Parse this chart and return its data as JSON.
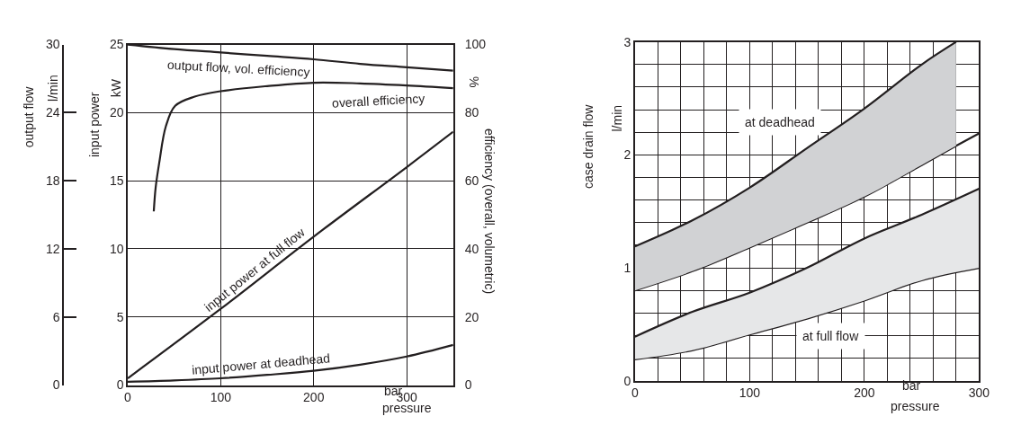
{
  "chart_data": [
    {
      "type": "line",
      "xlabel": "pressure",
      "ylabel": "input power",
      "y2label": "efficiency (overall, volumetric)",
      "y3label": "output flow",
      "annotations": [
        "l/min",
        "kW",
        "%",
        "bar"
      ],
      "series": [
        {
          "name": "output flow, vol. efficiency",
          "color": "#231f20",
          "axis": "y3",
          "x": [
            0,
            50,
            100,
            150,
            200,
            250,
            300,
            350
          ],
          "values": [
            30.0,
            29.6,
            29.3,
            29.0,
            28.7,
            28.3,
            28.0,
            27.7
          ]
        },
        {
          "name": "overall efficiency",
          "color": "#231f20",
          "axis": "y2",
          "x": [
            28,
            30,
            34,
            41,
            51,
            72,
            100,
            150,
            200,
            250,
            300,
            350
          ],
          "values": [
            51,
            58,
            65.5,
            76,
            82,
            84.7,
            86.3,
            87.8,
            88.8,
            88.6,
            88.0,
            87.2
          ]
        },
        {
          "name": "input power at full flow",
          "color": "#231f20",
          "x": [
            0,
            100,
            200,
            300,
            350
          ],
          "values": [
            0.5,
            5.6,
            10.9,
            16.0,
            18.6
          ]
        },
        {
          "name": "input power at deadhead",
          "color": "#231f20",
          "x": [
            0,
            50,
            100,
            150,
            200,
            250,
            300,
            350
          ],
          "values": [
            0.25,
            0.35,
            0.5,
            0.75,
            1.05,
            1.5,
            2.1,
            2.95
          ]
        }
      ],
      "xlim": [
        0,
        350
      ],
      "xticks": [
        0,
        100,
        200,
        300
      ],
      "ylim": [
        0,
        25
      ],
      "yticks": [
        0,
        5,
        10,
        15,
        20,
        25
      ],
      "y2lim": [
        0,
        100
      ],
      "y2ticks": [
        0,
        20,
        40,
        60,
        80,
        100
      ],
      "y3lim": [
        0,
        30
      ],
      "y3ticks": [
        0,
        6,
        12,
        18,
        24,
        30
      ],
      "grid": true,
      "legend": false
    },
    {
      "type": "area",
      "xlabel": "pressure",
      "ylabel": "case drain flow",
      "annotations": [
        "l/min",
        "bar"
      ],
      "series": [
        {
          "type": "line",
          "color": "#231f20",
          "x": [
            0,
            50,
            100,
            150,
            200,
            250,
            280,
            300
          ],
          "values": [
            0.8,
            0.97,
            1.18,
            1.4,
            1.63,
            1.91,
            2.08,
            2.19
          ]
        },
        {
          "name": "at deadhead",
          "color": "#d1d2d4",
          "x": [
            0,
            50,
            100,
            150,
            200,
            250,
            280
          ],
          "values": [
            1.19,
            1.42,
            1.71,
            2.06,
            2.41,
            2.8,
            3.0
          ]
        },
        {
          "type": "line",
          "color": "#231f20",
          "x": [
            0,
            50,
            100,
            150,
            200,
            250,
            300
          ],
          "values": [
            0.19,
            0.27,
            0.41,
            0.55,
            0.71,
            0.89,
            1.0
          ]
        },
        {
          "name": "at full flow",
          "color": "#e6e7e8",
          "x": [
            0,
            50,
            100,
            150,
            200,
            250,
            300
          ],
          "values": [
            0.39,
            0.61,
            0.78,
            1.0,
            1.26,
            1.47,
            1.7
          ]
        }
      ],
      "xlim": [
        0,
        300
      ],
      "xticks": [
        0,
        {
          "value": 20,
          "label": null
        },
        {
          "value": 40,
          "label": null
        },
        {
          "value": 60,
          "label": null
        },
        {
          "value": 80,
          "label": null
        },
        100,
        {
          "value": 120,
          "label": null
        },
        {
          "value": 140,
          "label": null
        },
        {
          "value": 160,
          "label": null
        },
        {
          "value": 180,
          "label": null
        },
        200,
        {
          "value": 220,
          "label": null
        },
        {
          "value": 240,
          "label": null
        },
        {
          "value": 260,
          "label": null
        },
        {
          "value": 280,
          "label": null
        },
        300
      ],
      "ylim": [
        0,
        3
      ],
      "yticks": [
        0,
        {
          "value": 0.2,
          "label": null
        },
        {
          "value": 0.4,
          "label": null
        },
        {
          "value": 0.6,
          "label": null
        },
        {
          "value": 0.8,
          "label": null
        },
        1,
        {
          "value": 1.2,
          "label": null
        },
        {
          "value": 1.4,
          "label": null
        },
        {
          "value": 1.6,
          "label": null
        },
        {
          "value": 1.8,
          "label": null
        },
        2,
        {
          "value": 2.2,
          "label": null
        },
        {
          "value": 2.4,
          "label": null
        },
        {
          "value": 2.6,
          "label": null
        },
        {
          "value": 2.8,
          "label": null
        },
        3
      ],
      "grid": true,
      "legend": false
    }
  ]
}
